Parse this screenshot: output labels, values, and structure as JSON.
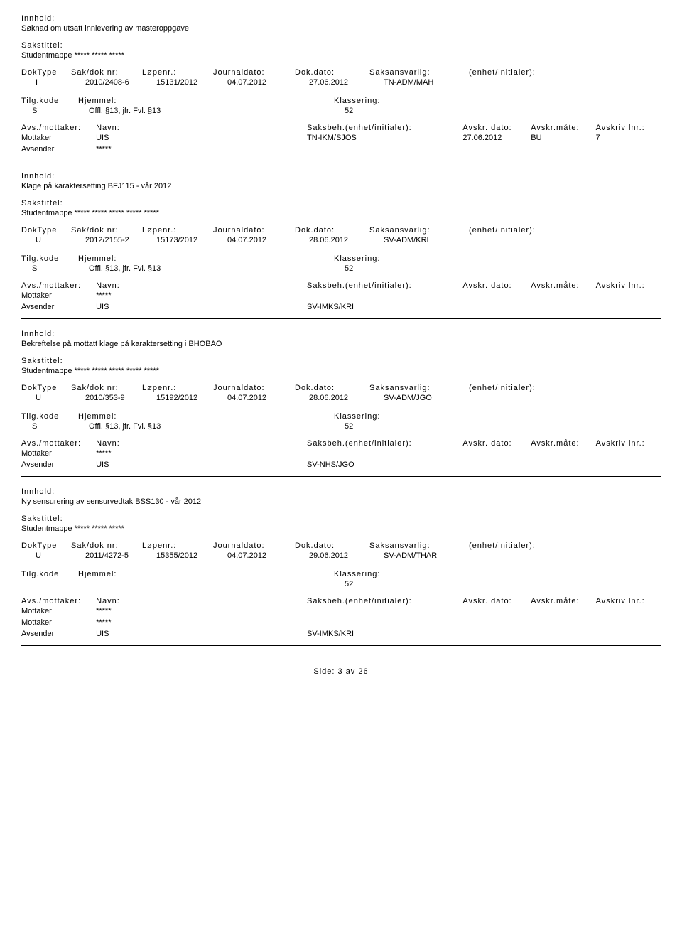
{
  "labels": {
    "innhold": "Innhold:",
    "sakstittel": "Sakstittel:",
    "doktype": "DokType",
    "sakdoknr": "Sak/dok nr:",
    "lopenr": "Løpenr.:",
    "journaldato": "Journaldato:",
    "dokdato": "Dok.dato:",
    "saksansvarlig": "Saksansvarlig:",
    "enhet": "(enhet/initialer):",
    "tilgkode": "Tilg.kode",
    "hjemmel": "Hjemmel:",
    "klassering": "Klassering:",
    "avsmottaker": "Avs./mottaker:",
    "navn": "Navn:",
    "saksbeh": "Saksbeh.(enhet/initialer):",
    "avskrdato": "Avskr. dato:",
    "avskrmate": "Avskr.måte:",
    "avskrivlnr": "Avskriv lnr.:"
  },
  "records": [
    {
      "innhold": "Søknad om utsatt innlevering av masteroppgave",
      "sakstittel": "Studentmappe ***** ***** *****",
      "doktype": "I",
      "sakdoknr": "2010/2408-6",
      "lopenr": "15131/2012",
      "journaldato": "04.07.2012",
      "dokdato": "27.06.2012",
      "saksansvarlig": "TN-ADM/MAH",
      "tilgkode": "S",
      "hjemmel": "Offl. §13, jfr. Fvl. §13",
      "klassering": "52",
      "parts": [
        {
          "role": "Mottaker",
          "navn": "UIS",
          "saksbeh": "TN-IKM/SJOS",
          "avskrdato": "27.06.2012",
          "avskrmate": "BU",
          "avskrivlnr": "7"
        },
        {
          "role": "Avsender",
          "navn": "*****",
          "saksbeh": "",
          "avskrdato": "",
          "avskrmate": "",
          "avskrivlnr": ""
        }
      ]
    },
    {
      "innhold": "Klage på karaktersetting BFJ115 - vår 2012",
      "sakstittel": "Studentmappe ***** ***** ***** ***** *****",
      "doktype": "U",
      "sakdoknr": "2012/2155-2",
      "lopenr": "15173/2012",
      "journaldato": "04.07.2012",
      "dokdato": "28.06.2012",
      "saksansvarlig": "SV-ADM/KRI",
      "tilgkode": "S",
      "hjemmel": "Offl. §13, jfr. Fvl. §13",
      "klassering": "52",
      "parts": [
        {
          "role": "Mottaker",
          "navn": "*****",
          "saksbeh": "",
          "avskrdato": "",
          "avskrmate": "",
          "avskrivlnr": ""
        },
        {
          "role": "Avsender",
          "navn": "UIS",
          "saksbeh": "SV-IMKS/KRI",
          "avskrdato": "",
          "avskrmate": "",
          "avskrivlnr": ""
        }
      ]
    },
    {
      "innhold": "Bekreftelse på mottatt klage på karaktersetting i BHOBAO",
      "sakstittel": "Studentmappe ***** ***** ***** ***** *****",
      "doktype": "U",
      "sakdoknr": "2010/353-9",
      "lopenr": "15192/2012",
      "journaldato": "04.07.2012",
      "dokdato": "28.06.2012",
      "saksansvarlig": "SV-ADM/JGO",
      "tilgkode": "S",
      "hjemmel": "Offl. §13, jfr. Fvl. §13",
      "klassering": "52",
      "parts": [
        {
          "role": "Mottaker",
          "navn": "*****",
          "saksbeh": "",
          "avskrdato": "",
          "avskrmate": "",
          "avskrivlnr": ""
        },
        {
          "role": "Avsender",
          "navn": "UIS",
          "saksbeh": "SV-NHS/JGO",
          "avskrdato": "",
          "avskrmate": "",
          "avskrivlnr": ""
        }
      ]
    },
    {
      "innhold": "Ny sensurering av sensurvedtak BSS130 - vår 2012",
      "sakstittel": "Studentmappe ***** ***** *****",
      "doktype": "U",
      "sakdoknr": "2011/4272-5",
      "lopenr": "15355/2012",
      "journaldato": "04.07.2012",
      "dokdato": "29.06.2012",
      "saksansvarlig": "SV-ADM/THAR",
      "tilgkode": "",
      "hjemmel": "",
      "klassering": "52",
      "parts": [
        {
          "role": "Mottaker",
          "navn": "*****",
          "saksbeh": "",
          "avskrdato": "",
          "avskrmate": "",
          "avskrivlnr": ""
        },
        {
          "role": "Mottaker",
          "navn": "*****",
          "saksbeh": "",
          "avskrdato": "",
          "avskrmate": "",
          "avskrivlnr": ""
        },
        {
          "role": "Avsender",
          "navn": "UIS",
          "saksbeh": "SV-IMKS/KRI",
          "avskrdato": "",
          "avskrmate": "",
          "avskrivlnr": ""
        }
      ]
    }
  ],
  "footer": {
    "side_label": "Side:",
    "page": "3",
    "av": "av",
    "total": "26"
  }
}
